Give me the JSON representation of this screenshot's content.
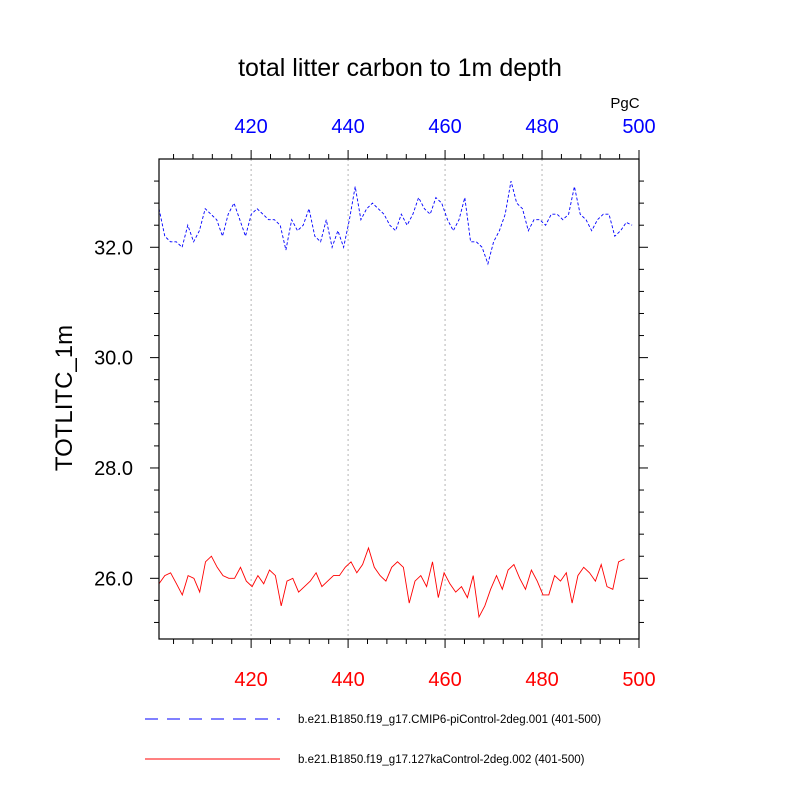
{
  "chart_data": {
    "type": "line",
    "title": "total litter carbon to 1m depth",
    "units": "PgC",
    "ylabel": "TOTLITC_1m",
    "xlim": [
      401,
      500
    ],
    "ylim": [
      24.9,
      33.6
    ],
    "xticks": [
      420,
      440,
      460,
      480,
      500
    ],
    "yticks": [
      26.0,
      28.0,
      30.0,
      32.0
    ],
    "ytick_labels": [
      "26.0",
      "28.0",
      "30.0",
      "32.0"
    ],
    "grid": "dotted vertical at x ticks",
    "top_axis_color": "#0000ff",
    "bottom_axis_color": "#ff0000",
    "series": [
      {
        "name": "b.e21.B1850.f19_g17.CMIP6-piControl-2deg.001 (401-500)",
        "color": "#0000ff",
        "style": "dashed",
        "x_start": 401,
        "values": [
          32.7,
          32.2,
          32.1,
          32.1,
          32.0,
          32.4,
          32.1,
          32.3,
          32.7,
          32.6,
          32.5,
          32.2,
          32.6,
          32.8,
          32.5,
          32.2,
          32.6,
          32.7,
          32.6,
          32.5,
          32.5,
          32.4,
          31.95,
          32.5,
          32.3,
          32.4,
          32.7,
          32.2,
          32.1,
          32.5,
          32.0,
          32.3,
          32.0,
          32.5,
          33.1,
          32.5,
          32.7,
          32.8,
          32.7,
          32.6,
          32.4,
          32.3,
          32.6,
          32.4,
          32.6,
          32.9,
          32.7,
          32.6,
          32.9,
          32.8,
          32.5,
          32.3,
          32.5,
          32.9,
          32.1,
          32.1,
          32.0,
          31.7,
          32.1,
          32.3,
          32.6,
          33.2,
          32.8,
          32.7,
          32.3,
          32.5,
          32.5,
          32.4,
          32.6,
          32.6,
          32.5,
          32.6,
          33.1,
          32.6,
          32.5,
          32.3,
          32.5,
          32.6,
          32.6,
          32.2,
          32.3,
          32.45,
          32.4
        ],
        "x_step": 1.19
      },
      {
        "name": "b.e21.B1850.f19_g17.127kaControl-2deg.002 (401-500)",
        "color": "#ff0000",
        "style": "solid",
        "x_start": 401,
        "values": [
          25.9,
          26.05,
          26.1,
          25.9,
          25.7,
          26.05,
          26.0,
          25.75,
          26.3,
          26.4,
          26.2,
          26.05,
          26.0,
          26.0,
          26.2,
          25.95,
          25.85,
          26.05,
          25.9,
          26.15,
          26.05,
          25.5,
          25.95,
          26.0,
          25.75,
          25.85,
          25.95,
          26.1,
          25.85,
          25.95,
          26.05,
          26.05,
          26.2,
          26.3,
          26.1,
          26.25,
          26.55,
          26.2,
          26.05,
          25.95,
          26.2,
          26.3,
          26.2,
          25.55,
          25.95,
          26.05,
          25.85,
          26.3,
          25.65,
          26.1,
          25.9,
          25.75,
          25.85,
          25.65,
          26.05,
          25.3,
          25.5,
          25.8,
          26.05,
          25.8,
          26.15,
          26.25,
          26.0,
          25.8,
          26.15,
          25.95,
          25.7,
          25.7,
          26.05,
          25.95,
          26.1,
          25.55,
          26.05,
          26.2,
          26.1,
          25.95,
          26.25,
          25.85,
          25.8,
          26.3,
          26.35
        ],
        "x_step": 1.2
      }
    ]
  }
}
